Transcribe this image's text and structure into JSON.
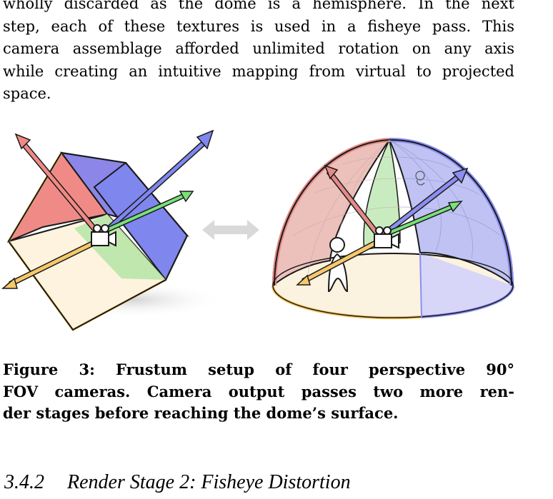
{
  "paragraph": {
    "lines": [
      "wholly discarded as the dome is a hemisphere. In the next",
      "step, each of these textures is used in a fisheye pass. This",
      "camera assemblage afforded unlimited rotation on any axis",
      "while creating an intuitive mapping from virtual to projected",
      "space."
    ]
  },
  "figure": {
    "cube_colors": {
      "red": "#f08a86",
      "blue": "#7f86ee",
      "green": "#b8e6a8",
      "yellow": "#fdf3de",
      "edge": "#1a1a1a"
    },
    "dome_colors": {
      "red": "#e48b87",
      "blue": "#8b8ff0",
      "green": "#a8e2a0",
      "yellow": "#fbf2df"
    },
    "double_arrow_color": "#d9d9d9",
    "icons": [
      "camera-icon",
      "person-icon"
    ]
  },
  "caption": {
    "lines": [
      "Figure 3: Frustum setup of four perspective 90°",
      "FOV cameras. Camera output passes two more ren-",
      "der stages before reaching the dome’s surface."
    ]
  },
  "section": {
    "number": "3.4.2",
    "title": "Render Stage 2: Fisheye Distortion"
  }
}
